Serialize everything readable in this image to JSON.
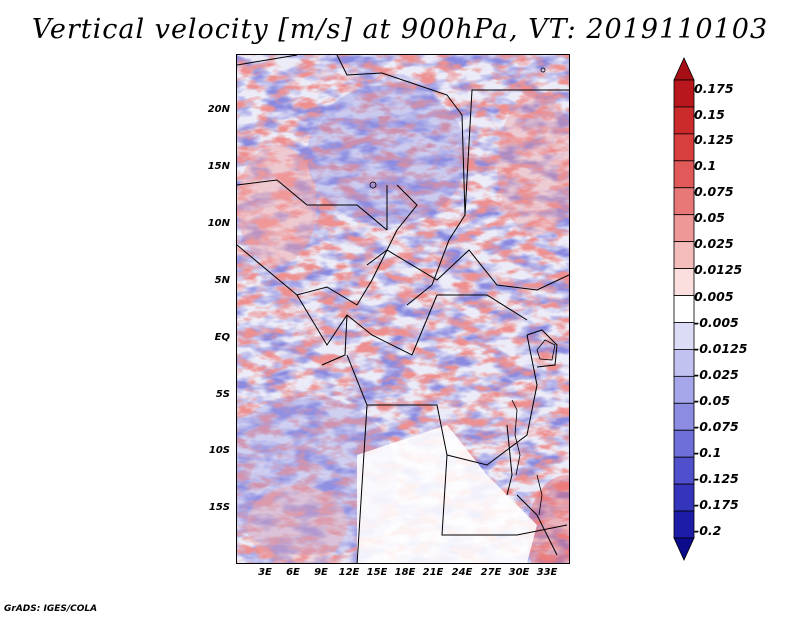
{
  "title": "Vertical velocity [m/s] at 900hPa, VT: 2019110103",
  "map": {
    "lon_range": [
      0,
      35
    ],
    "lat_range": [
      -20,
      25
    ],
    "y_ticks": [
      "20N",
      "15N",
      "10N",
      "5N",
      "EQ",
      "5S",
      "10S",
      "15S"
    ],
    "x_ticks": [
      "3E",
      "6E",
      "9E",
      "12E",
      "15E",
      "18E",
      "21E",
      "24E",
      "27E",
      "30E",
      "33E"
    ]
  },
  "colorbar": {
    "labels": [
      "0.175",
      "0.15",
      "0.125",
      "0.1",
      "0.075",
      "0.05",
      "0.025",
      "0.0125",
      "0.005",
      "-0.005",
      "-0.0125",
      "-0.025",
      "-0.05",
      "-0.075",
      "-0.1",
      "-0.125",
      "-0.175",
      "-0.2"
    ],
    "colors": [
      "#a50f15",
      "#b8181d",
      "#cb2a2a",
      "#d84040",
      "#e05a5a",
      "#e87878",
      "#ef9898",
      "#f5bcbc",
      "#fbdede",
      "#ffffff",
      "#dcdcf7",
      "#c2c2f0",
      "#a6a6ea",
      "#8c8ce2",
      "#6f6fd9",
      "#5050cc",
      "#3535bc",
      "#1c1ca8",
      "#0b0b8c"
    ]
  },
  "footer": "GrADS: IGES/COLA"
}
